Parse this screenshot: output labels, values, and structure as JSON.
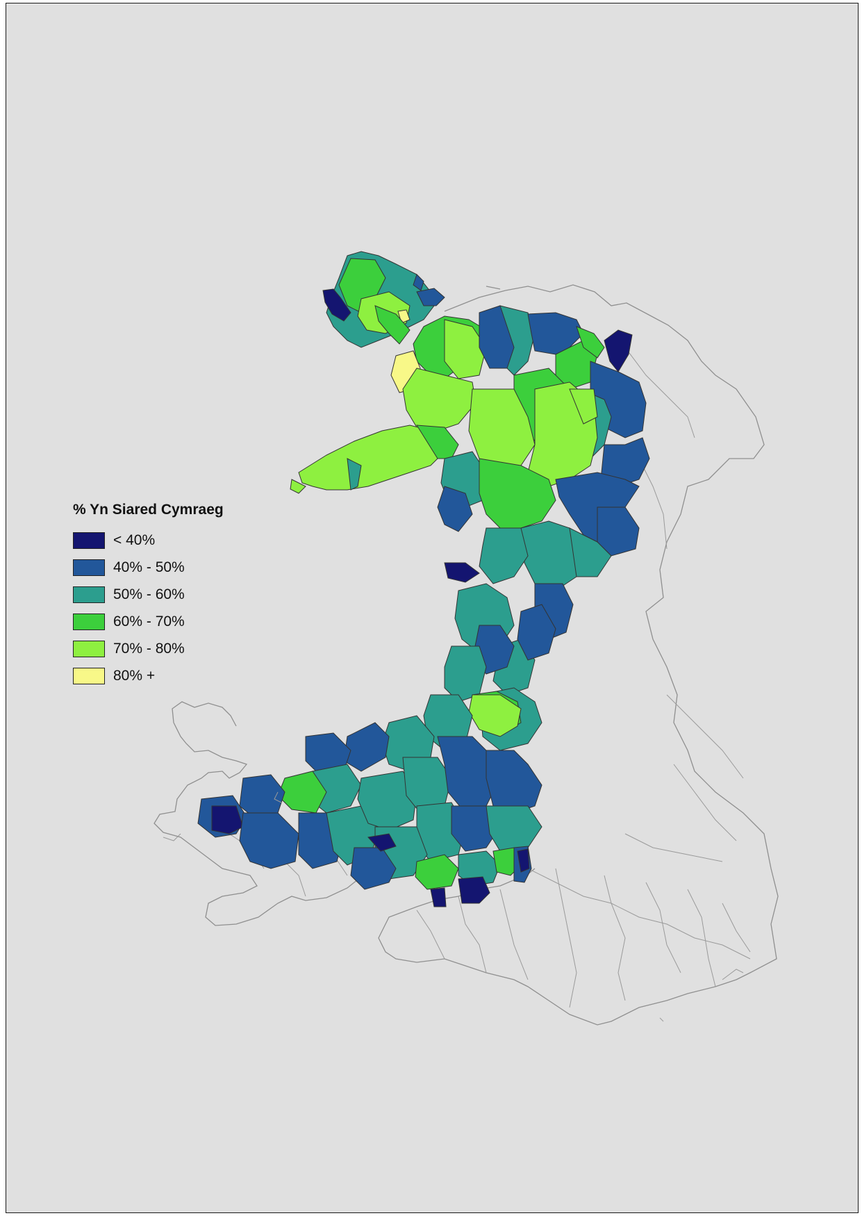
{
  "legend": {
    "title": "% Yn Siared Cymraeg",
    "classes": [
      {
        "label": "< 40%",
        "color": "#141570"
      },
      {
        "label": "40% - 50%",
        "color": "#22579a"
      },
      {
        "label": "50% - 60%",
        "color": "#2c9e8e"
      },
      {
        "label": "60% - 70%",
        "color": "#3ccf3c"
      },
      {
        "label": "70% - 80%",
        "color": "#8ef040"
      },
      {
        "label": "80% +",
        "color": "#f8f888"
      }
    ]
  },
  "colors": {
    "background": "#e0e0e0",
    "boundary": "#555555",
    "outline": "#9a9a9a"
  }
}
